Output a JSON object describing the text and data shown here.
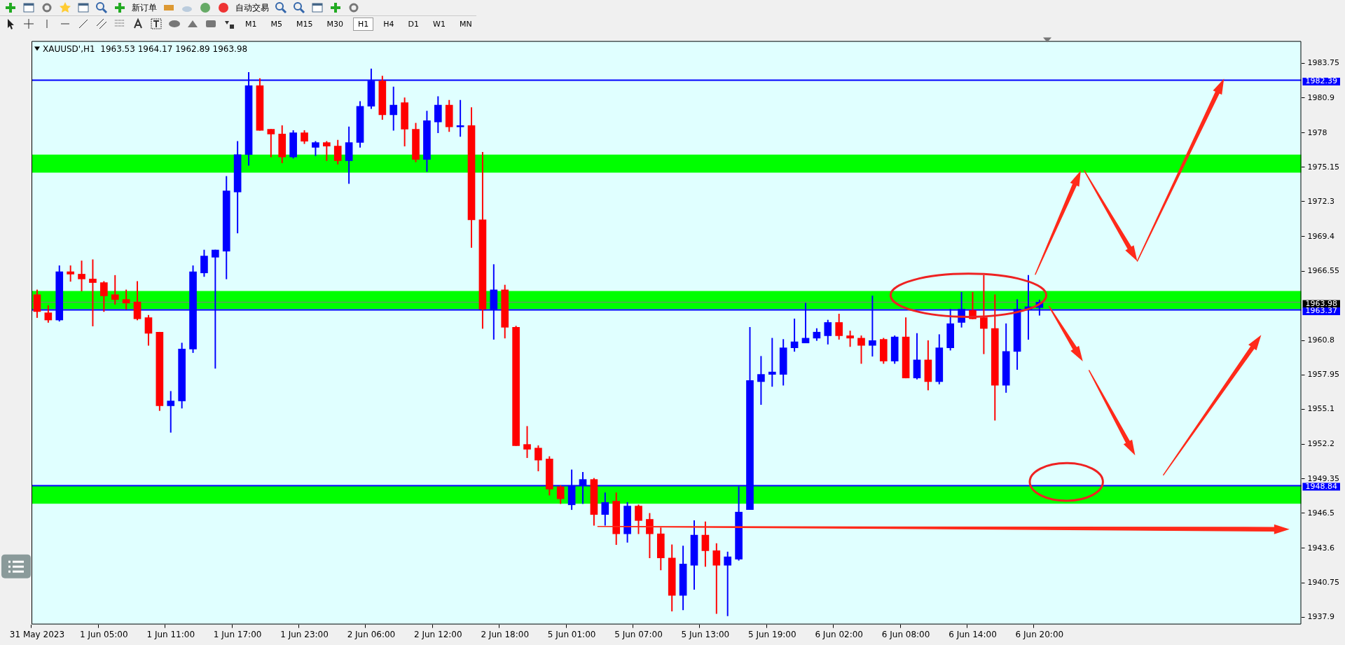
{
  "chart_data": {
    "type": "candlestick",
    "title": "XAUUSD',H1  1963.53 1964.17 1962.89 1963.98",
    "categories": [
      "31 May 2023",
      null,
      null,
      null,
      null,
      null,
      "1 Jun 05:00",
      null,
      null,
      null,
      null,
      null,
      "1 Jun 11:00",
      null,
      null,
      null,
      null,
      null,
      "1 Jun 17:00",
      null,
      null,
      null,
      null,
      null,
      "1 Jun 23:00",
      null,
      null,
      null,
      null,
      null,
      "2 Jun 06:00",
      null,
      null,
      null,
      null,
      null,
      "2 Jun 12:00",
      null,
      null,
      null,
      null,
      null,
      "2 Jun 18:00",
      null,
      null,
      null,
      null,
      null,
      "5 Jun 01:00",
      null,
      null,
      null,
      null,
      null,
      "5 Jun 07:00",
      null,
      null,
      null,
      null,
      null,
      "5 Jun 13:00",
      null,
      null,
      null,
      null,
      null,
      "5 Jun 19:00",
      null,
      null,
      null,
      null,
      null,
      "6 Jun 02:00",
      null,
      null,
      null,
      null,
      null,
      "6 Jun 08:00",
      null,
      null,
      null,
      null,
      null,
      "6 Jun 14:00",
      null,
      null,
      null,
      null,
      null,
      "6 Jun 20:00",
      null,
      null,
      null,
      null,
      null,
      null,
      null,
      null,
      null,
      null,
      null,
      null,
      null,
      null,
      null,
      null,
      null,
      null,
      null,
      null,
      null,
      null,
      null
    ],
    "ohlc": [
      [
        1964.6,
        1965.0,
        1962.7,
        1963.2
      ],
      [
        1963.1,
        1963.7,
        1962.3,
        1962.5
      ],
      [
        1962.5,
        1967.0,
        1962.4,
        1966.5
      ],
      [
        1966.5,
        1967.0,
        1965.7,
        1966.3
      ],
      [
        1966.3,
        1967.4,
        1964.9,
        1965.9
      ],
      [
        1965.9,
        1967.5,
        1962.0,
        1965.6
      ],
      [
        1965.6,
        1965.7,
        1963.2,
        1964.5
      ],
      [
        1964.6,
        1966.2,
        1963.8,
        1964.2
      ],
      [
        1964.2,
        1965.0,
        1963.4,
        1963.9
      ],
      [
        1964.0,
        1965.7,
        1962.5,
        1962.6
      ],
      [
        1962.7,
        1962.9,
        1960.4,
        1961.4
      ],
      [
        1961.5,
        1961.5,
        1955.0,
        1955.4
      ],
      [
        1955.4,
        1956.6,
        1953.2,
        1955.8
      ],
      [
        1955.8,
        1960.6,
        1955.2,
        1960.1
      ],
      [
        1960.1,
        1967.0,
        1959.8,
        1966.5
      ],
      [
        1966.4,
        1968.3,
        1966.1,
        1967.8
      ],
      [
        1967.7,
        1968.3,
        1958.5,
        1968.3
      ],
      [
        1968.2,
        1974.4,
        1965.9,
        1973.2
      ],
      [
        1973.1,
        1977.3,
        1969.7,
        1976.2
      ],
      [
        1976.2,
        1983.0,
        1975.3,
        1981.9
      ],
      [
        1981.9,
        1982.5,
        1978.2,
        1978.2
      ],
      [
        1978.3,
        1978.3,
        1976.0,
        1977.9
      ],
      [
        1977.9,
        1978.6,
        1975.5,
        1976.0
      ],
      [
        1976.0,
        1978.2,
        1975.9,
        1978.0
      ],
      [
        1978.0,
        1978.2,
        1977.1,
        1977.3
      ],
      [
        1976.8,
        1977.3,
        1976.1,
        1977.2
      ],
      [
        1977.2,
        1977.3,
        1975.7,
        1976.9
      ],
      [
        1976.9,
        1977.4,
        1975.4,
        1975.7
      ],
      [
        1975.7,
        1978.5,
        1973.8,
        1977.2
      ],
      [
        1977.2,
        1980.6,
        1976.8,
        1980.2
      ],
      [
        1980.2,
        1983.3,
        1980.0,
        1982.3
      ],
      [
        1982.3,
        1982.7,
        1979.1,
        1979.5
      ],
      [
        1979.5,
        1981.8,
        1978.2,
        1980.3
      ],
      [
        1980.5,
        1980.9,
        1976.9,
        1978.3
      ],
      [
        1978.3,
        1978.8,
        1975.6,
        1975.8
      ],
      [
        1975.8,
        1979.8,
        1974.8,
        1979.0
      ],
      [
        1978.9,
        1981.0,
        1978.0,
        1980.3
      ],
      [
        1980.3,
        1980.7,
        1978.1,
        1978.5
      ],
      [
        1978.5,
        1980.7,
        1977.7,
        1978.6
      ],
      [
        1978.6,
        1980.1,
        1968.5,
        1970.8
      ],
      [
        1970.8,
        1976.4,
        1961.8,
        1963.4
      ],
      [
        1963.4,
        1967.1,
        1960.9,
        1965.0
      ],
      [
        1965.0,
        1965.4,
        1961.0,
        1961.9
      ],
      [
        1961.9,
        1962.0,
        1952.1,
        1952.1
      ],
      [
        1952.2,
        1953.7,
        1951.1,
        1951.8
      ],
      [
        1951.9,
        1952.1,
        1950.0,
        1950.9
      ],
      [
        1951.0,
        1951.2,
        1948.0,
        1948.5
      ],
      [
        1948.7,
        1948.8,
        1947.3,
        1947.7
      ],
      [
        1947.2,
        1950.1,
        1946.8,
        1948.8
      ],
      [
        1948.8,
        1949.9,
        1947.3,
        1949.3
      ],
      [
        1949.3,
        1949.4,
        1945.5,
        1946.4
      ],
      [
        1946.4,
        1948.2,
        1945.5,
        1947.4
      ],
      [
        1947.5,
        1948.2,
        1943.9,
        1944.8
      ],
      [
        1944.8,
        1947.4,
        1944.1,
        1947.1
      ],
      [
        1947.1,
        1947.2,
        1944.8,
        1945.9
      ],
      [
        1946.0,
        1946.5,
        1942.8,
        1944.8
      ],
      [
        1944.8,
        1945.3,
        1941.8,
        1942.8
      ],
      [
        1942.8,
        1943.9,
        1938.4,
        1939.7
      ],
      [
        1939.7,
        1943.8,
        1938.5,
        1942.3
      ],
      [
        1942.2,
        1945.9,
        1940.2,
        1944.7
      ],
      [
        1944.7,
        1945.8,
        1942.1,
        1943.4
      ],
      [
        1943.4,
        1944.0,
        1938.2,
        1942.2
      ],
      [
        1942.2,
        1943.3,
        1938.0,
        1942.9
      ],
      [
        1942.7,
        1948.7,
        1942.6,
        1946.6
      ],
      [
        1946.8,
        1961.9,
        1946.8,
        1957.5
      ],
      [
        1957.4,
        1959.5,
        1955.5,
        1958.0
      ],
      [
        1958.0,
        1961.0,
        1957.0,
        1958.2
      ],
      [
        1958.0,
        1960.9,
        1957.1,
        1960.2
      ],
      [
        1960.2,
        1962.6,
        1959.9,
        1960.7
      ],
      [
        1960.6,
        1963.9,
        1960.6,
        1961.0
      ],
      [
        1961.0,
        1961.8,
        1960.8,
        1961.5
      ],
      [
        1961.2,
        1962.5,
        1960.5,
        1962.3
      ],
      [
        1962.3,
        1963.0,
        1960.9,
        1961.2
      ],
      [
        1961.2,
        1961.6,
        1960.3,
        1961.0
      ],
      [
        1961.0,
        1961.2,
        1958.9,
        1960.4
      ],
      [
        1960.4,
        1964.5,
        1959.5,
        1960.8
      ],
      [
        1960.9,
        1961.0,
        1958.9,
        1959.1
      ],
      [
        1959.1,
        1961.2,
        1958.9,
        1961.1
      ],
      [
        1961.1,
        1962.7,
        1957.7,
        1957.7
      ],
      [
        1957.7,
        1961.4,
        1957.6,
        1959.2
      ],
      [
        1959.2,
        1960.8,
        1956.7,
        1957.4
      ],
      [
        1957.4,
        1961.3,
        1957.2,
        1960.2
      ],
      [
        1960.2,
        1963.4,
        1960.0,
        1962.2
      ],
      [
        1962.3,
        1964.8,
        1961.9,
        1963.4
      ],
      [
        1963.3,
        1964.8,
        1962.6,
        1962.6
      ],
      [
        1962.7,
        1966.2,
        1959.7,
        1961.8
      ],
      [
        1961.8,
        1964.6,
        1954.2,
        1957.1
      ],
      [
        1957.1,
        1962.2,
        1956.5,
        1959.9
      ],
      [
        1959.9,
        1964.2,
        1958.4,
        1963.4
      ],
      [
        1963.4,
        1966.2,
        1960.9,
        1963.6
      ],
      [
        1963.53,
        1964.17,
        1962.89,
        1963.98
      ],
      null,
      null,
      null,
      null,
      null,
      null,
      null,
      null,
      null,
      null,
      null,
      null,
      null,
      null,
      null,
      null,
      null,
      null,
      null,
      null,
      null,
      null,
      null
    ],
    "colors": [
      "#ff0000",
      "#ff0000",
      "#0000ff",
      "#ff0000",
      "#ff0000",
      "#ff0000",
      "#ff0000",
      "#ff0000",
      "#ff0000",
      "#ff0000",
      "#ff0000",
      "#ff0000",
      "#0000ff",
      "#0000ff",
      "#0000ff",
      "#0000ff",
      "#0000ff",
      "#0000ff",
      "#0000ff",
      "#0000ff",
      "#ff0000",
      "#ff0000",
      "#ff0000",
      "#0000ff",
      "#ff0000",
      "#0000ff",
      "#ff0000",
      "#ff0000",
      "#0000ff",
      "#0000ff",
      "#0000ff",
      "#ff0000",
      "#0000ff",
      "#ff0000",
      "#ff0000",
      "#0000ff",
      "#0000ff",
      "#ff0000",
      "#0000ff",
      "#ff0000",
      "#ff0000",
      "#0000ff",
      "#ff0000",
      "#ff0000",
      "#ff0000",
      "#ff0000",
      "#ff0000",
      "#ff0000",
      "#0000ff",
      "#0000ff",
      "#ff0000",
      "#0000ff",
      "#ff0000",
      "#0000ff",
      "#ff0000",
      "#ff0000",
      "#ff0000",
      "#ff0000",
      "#0000ff",
      "#0000ff",
      "#ff0000",
      "#ff0000",
      "#0000ff",
      "#0000ff",
      "#0000ff",
      "#0000ff",
      "#0000ff",
      "#0000ff",
      "#0000ff",
      "#0000ff",
      "#0000ff",
      "#0000ff",
      "#ff0000",
      "#ff0000",
      "#ff0000",
      "#0000ff",
      "#ff0000",
      "#0000ff",
      "#ff0000",
      "#0000ff",
      "#ff0000",
      "#0000ff",
      "#0000ff",
      "#0000ff",
      "#ff0000",
      "#ff0000",
      "#ff0000",
      "#0000ff",
      "#0000ff",
      "#0000ff",
      "#0000ff",
      null,
      null,
      null,
      null,
      null,
      null,
      null,
      null,
      null,
      null,
      null,
      null,
      null,
      null,
      null,
      null,
      null,
      null,
      null,
      null,
      null,
      null,
      null
    ],
    "ylim": [
      1937.3,
      1985.6
    ],
    "yticks": [
      1937.9,
      1940.75,
      1943.6,
      1946.5,
      1949.35,
      1952.2,
      1955.1,
      1957.95,
      1960.8,
      1966.55,
      1969.4,
      1972.3,
      1975.15,
      1978.0,
      1980.9,
      1983.75
    ],
    "ref_lines": [
      {
        "axis": "y",
        "value": 1982.39,
        "label": "1982.39",
        "color": "#0000ff"
      },
      {
        "axis": "y",
        "value": 1963.98,
        "label": "1963.98",
        "color": "#808080"
      },
      {
        "axis": "y",
        "value": 1963.37,
        "label": "1963.37",
        "color": "#0000ff"
      },
      {
        "axis": "y",
        "value": 1948.84,
        "label": "1948.84",
        "color": "#0000ff"
      }
    ],
    "bands": [
      {
        "axis": "y",
        "from": 1974.7,
        "to": 1976.2,
        "color": "#00ff00"
      },
      {
        "axis": "y",
        "from": 1963.4,
        "to": 1964.9,
        "color": "#00ff00"
      },
      {
        "axis": "y",
        "from": 1947.3,
        "to": 1948.8,
        "color": "#00ff00"
      }
    ],
    "annotations": [
      "新订单",
      "自动交易",
      "M1",
      "M5",
      "M15",
      "M30",
      "H1",
      "H4",
      "D1",
      "W1",
      "MN"
    ],
    "grid": false,
    "legend": false
  }
}
